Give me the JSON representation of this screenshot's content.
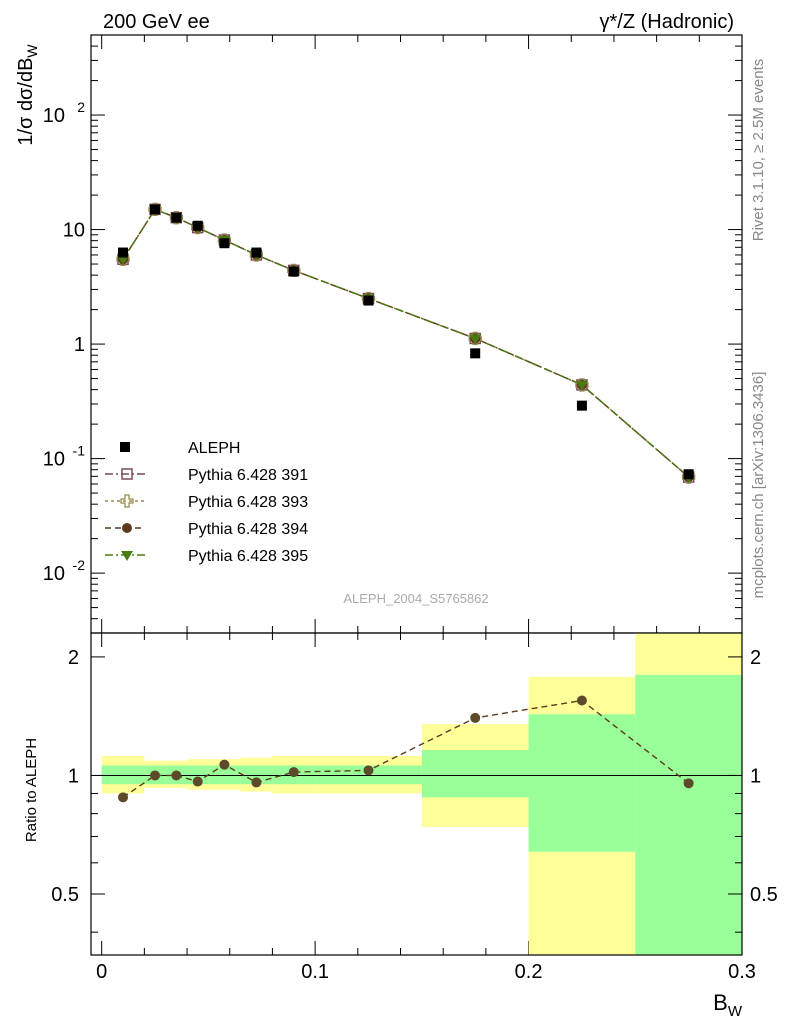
{
  "header": {
    "left": "200 GeV ee",
    "right": "γ*/Z (Hadronic)"
  },
  "side_labels": {
    "version": "Rivet 3.1.10, ≥ 2.5M events",
    "source": "mcplots.cern.ch [arXiv:1306.3436]"
  },
  "analysis_tag": "ALEPH_2004_S5765862",
  "chart_data": [
    {
      "type": "line",
      "panel": "main",
      "ylabel": "1/σ  dσ/dB_W",
      "yscale": "log",
      "ylim": [
        0.003,
        500
      ],
      "xlim": [
        -0.005,
        0.3
      ],
      "y_ticks": [
        "10^-2",
        "10^-1",
        "1",
        "10",
        "10^2"
      ],
      "legend_position": "lower-left",
      "legend": [
        "ALEPH",
        "Pythia 6.428 391",
        "Pythia 6.428 393",
        "Pythia 6.428 394",
        "Pythia 6.428 395"
      ],
      "x": [
        0.01,
        0.025,
        0.035,
        0.045,
        0.0575,
        0.0725,
        0.09,
        0.125,
        0.175,
        0.225,
        0.275
      ],
      "series": [
        {
          "name": "ALEPH",
          "values": [
            6.3,
            15,
            12.7,
            10.8,
            7.6,
            6.3,
            4.3,
            2.4,
            0.83,
            0.29,
            0.073
          ],
          "color": "#000000",
          "marker": "square"
        },
        {
          "name": "Pythia 6.428 391",
          "values": [
            5.5,
            15,
            12.7,
            10.4,
            8.1,
            6.0,
            4.4,
            2.5,
            1.12,
            0.44,
            0.069
          ],
          "color": "#7a4a5a",
          "marker": "open-square"
        },
        {
          "name": "Pythia 6.428 393",
          "values": [
            5.5,
            15,
            12.7,
            10.4,
            8.1,
            6.0,
            4.4,
            2.5,
            1.12,
            0.44,
            0.069
          ],
          "color": "#9a8a50",
          "marker": "open-cross"
        },
        {
          "name": "Pythia 6.428 394",
          "values": [
            5.5,
            15,
            12.7,
            10.4,
            8.1,
            6.0,
            4.4,
            2.5,
            1.12,
            0.44,
            0.069
          ],
          "color": "#5c3c1c",
          "marker": "circle"
        },
        {
          "name": "Pythia 6.428 395",
          "values": [
            5.5,
            15,
            12.7,
            10.4,
            8.1,
            6.0,
            4.4,
            2.5,
            1.12,
            0.44,
            0.069
          ],
          "color": "#4a7a10",
          "marker": "triangle-down"
        }
      ]
    },
    {
      "type": "line",
      "panel": "ratio",
      "xlabel": "B_W",
      "ylabel": "Ratio to ALEPH",
      "ylim": [
        0.35,
        2.3
      ],
      "y_ticks": [
        "0.5",
        "1",
        "2"
      ],
      "x_ticks": [
        "0",
        "0.1",
        "0.2",
        "0.3"
      ],
      "x": [
        0.01,
        0.025,
        0.035,
        0.045,
        0.0575,
        0.0725,
        0.09,
        0.125,
        0.175,
        0.225,
        0.275
      ],
      "values": [
        0.88,
        1.0,
        1.0,
        0.965,
        1.065,
        0.96,
        1.02,
        1.03,
        1.4,
        1.55,
        0.955
      ],
      "bands": [
        {
          "x0": 0.0,
          "x1": 0.02,
          "inner": [
            0.95,
            1.06
          ],
          "outer": [
            0.9,
            1.12
          ]
        },
        {
          "x0": 0.02,
          "x1": 0.03,
          "inner": [
            0.95,
            1.06
          ],
          "outer": [
            0.93,
            1.09
          ]
        },
        {
          "x0": 0.03,
          "x1": 0.04,
          "inner": [
            0.95,
            1.06
          ],
          "outer": [
            0.93,
            1.09
          ]
        },
        {
          "x0": 0.04,
          "x1": 0.05,
          "inner": [
            0.95,
            1.06
          ],
          "outer": [
            0.92,
            1.1
          ]
        },
        {
          "x0": 0.05,
          "x1": 0.065,
          "inner": [
            0.95,
            1.06
          ],
          "outer": [
            0.92,
            1.1
          ]
        },
        {
          "x0": 0.065,
          "x1": 0.08,
          "inner": [
            0.95,
            1.06
          ],
          "outer": [
            0.91,
            1.11
          ]
        },
        {
          "x0": 0.08,
          "x1": 0.1,
          "inner": [
            0.95,
            1.06
          ],
          "outer": [
            0.9,
            1.12
          ]
        },
        {
          "x0": 0.1,
          "x1": 0.15,
          "inner": [
            0.95,
            1.06
          ],
          "outer": [
            0.9,
            1.12
          ]
        },
        {
          "x0": 0.15,
          "x1": 0.2,
          "inner": [
            0.88,
            1.16
          ],
          "outer": [
            0.74,
            1.35
          ]
        },
        {
          "x0": 0.2,
          "x1": 0.25,
          "inner": [
            0.64,
            1.43
          ],
          "outer": [
            0.35,
            1.78
          ]
        },
        {
          "x0": 0.25,
          "x1": 0.3,
          "inner": [
            0.35,
            1.8
          ],
          "outer": [
            0.35,
            2.3
          ]
        }
      ],
      "band_colors": {
        "inner": "#99ff99",
        "outer": "#ffff99"
      }
    }
  ]
}
